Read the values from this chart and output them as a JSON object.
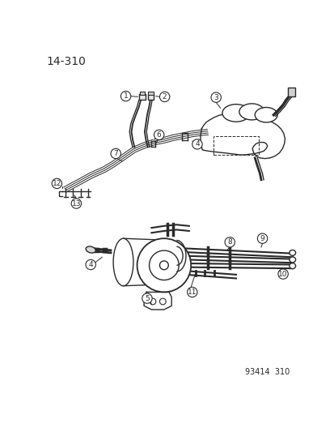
{
  "page_label": "14-310",
  "footer": "93414  310",
  "bg": "#ffffff",
  "lc": "#2a2a2a",
  "figsize": [
    4.14,
    5.33
  ],
  "dpi": 100
}
